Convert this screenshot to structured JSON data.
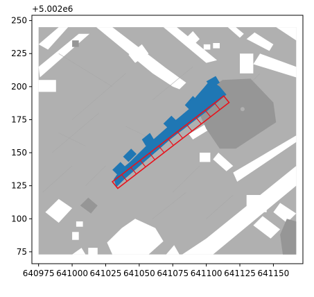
{
  "chart_data": {
    "type": "map",
    "x_offset_label": "",
    "y_offset_label": "+5.002e6",
    "xlim": [
      640970,
      641172
    ],
    "ylim": [
      66,
      254
    ],
    "xticks": [
      {
        "value": 640975,
        "label": "640975"
      },
      {
        "value": 641000,
        "label": "641000"
      },
      {
        "value": 641025,
        "label": "641025"
      },
      {
        "value": 641050,
        "label": "641050"
      },
      {
        "value": 641075,
        "label": "641075"
      },
      {
        "value": 641100,
        "label": "641100"
      },
      {
        "value": 641125,
        "label": "641125"
      },
      {
        "value": 641150,
        "label": "641150"
      }
    ],
    "yticks": [
      {
        "value": 75,
        "label": "75"
      },
      {
        "value": 100,
        "label": "100"
      },
      {
        "value": 125,
        "label": "125"
      },
      {
        "value": 150,
        "label": "150"
      },
      {
        "value": 175,
        "label": "175"
      },
      {
        "value": 200,
        "label": "200"
      },
      {
        "value": 225,
        "label": "225"
      },
      {
        "value": 250,
        "label": "250"
      }
    ],
    "colors": {
      "background_buildings": "#b0b0b0",
      "dark_buildings": "#969696",
      "selected_buildings": "#1f77b4",
      "outline": "#e8121b",
      "gaps": "#ffffff"
    },
    "extent": {
      "x": [
        640975,
        641167
      ],
      "y": [
        73,
        245
      ]
    },
    "selected_polygon": [
      [
        641031,
        130
      ],
      [
        641036,
        137
      ],
      [
        641042,
        142
      ],
      [
        641048,
        148
      ],
      [
        641056,
        156
      ],
      [
        641065,
        164
      ],
      [
        641074,
        172
      ],
      [
        641080,
        177
      ],
      [
        641087,
        183
      ],
      [
        641092,
        192
      ],
      [
        641098,
        199
      ],
      [
        641103,
        205
      ],
      [
        641110,
        200
      ],
      [
        641115,
        194
      ],
      [
        641108,
        188
      ],
      [
        641100,
        181
      ],
      [
        641091,
        174
      ],
      [
        641082,
        167
      ],
      [
        641073,
        160
      ],
      [
        641064,
        152
      ],
      [
        641056,
        145
      ],
      [
        641047,
        137
      ],
      [
        641039,
        130
      ],
      [
        641033,
        124
      ]
    ],
    "outline_polygon": [
      [
        641030,
        128
      ],
      [
        641113,
        193
      ],
      [
        641117,
        188
      ],
      [
        641034,
        123
      ]
    ],
    "outline_cells": 12
  }
}
